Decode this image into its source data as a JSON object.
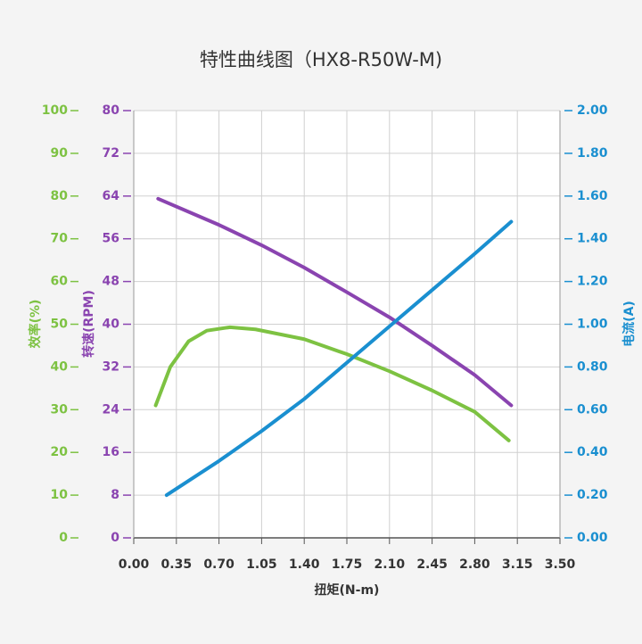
{
  "chart_data": {
    "type": "line",
    "title": "特性曲线图（HX8-R50W-M)",
    "xlabel": "扭矩(N-m)",
    "ylabel": "效率(%)",
    "y2label": "转速(RPM)",
    "y3label": "电流(A)",
    "xlim": [
      0,
      3.5
    ],
    "xticks": [
      {
        "value": 0,
        "label": "0.00"
      },
      0.35,
      {
        "value": 0.7,
        "label": "0.70"
      },
      1.05,
      {
        "value": 1.4,
        "label": "1.40"
      },
      1.75,
      {
        "value": 2.1,
        "label": "2.10"
      },
      2.45,
      {
        "value": 2.8,
        "label": "2.80"
      },
      3.15,
      {
        "value": 3.5,
        "label": "3.50"
      }
    ],
    "ylim": [
      0,
      100
    ],
    "yticks": [
      0,
      10,
      20,
      30,
      40,
      50,
      60,
      70,
      80,
      90,
      100
    ],
    "y2lim": [
      0,
      80
    ],
    "y2ticks": [
      0,
      8,
      16,
      24,
      32,
      40,
      48,
      56,
      64,
      72,
      80
    ],
    "y3lim": [
      0,
      2
    ],
    "y3ticks": [
      {
        "value": 0,
        "label": "0.00"
      },
      {
        "value": 0.2,
        "label": "0.20"
      },
      {
        "value": 0.4,
        "label": "0.40"
      },
      {
        "value": 0.6,
        "label": "0.60"
      },
      {
        "value": 0.8,
        "label": "0.80"
      },
      {
        "value": 1,
        "label": "1.00"
      },
      {
        "value": 1.2,
        "label": "1.20"
      },
      {
        "value": 1.4,
        "label": "1.40"
      },
      {
        "value": 1.6,
        "label": "1.60"
      },
      {
        "value": 1.8,
        "label": "1.80"
      },
      {
        "value": 2,
        "label": "2.00"
      }
    ],
    "ycolor": "#7dc242",
    "y2color": "#8a44b0",
    "y3color": "#1a8fd0",
    "grid": true,
    "series": [
      {
        "axis": "y",
        "color": "#7dc242",
        "x": [
          0.18,
          0.3,
          0.45,
          0.6,
          0.79,
          1.0,
          1.4,
          1.75,
          2.1,
          2.45,
          2.8,
          3.08
        ],
        "values": [
          31,
          40,
          46,
          48.5,
          49.3,
          48.8,
          46.5,
          43,
          39,
          34.5,
          29.5,
          22.8
        ]
      },
      {
        "axis": "y2",
        "color": "#8a44b0",
        "x": [
          0.2,
          0.7,
          1.05,
          1.4,
          1.75,
          2.1,
          2.45,
          2.8,
          3.1
        ],
        "values": [
          63.5,
          58.6,
          54.8,
          50.6,
          46,
          41.3,
          36,
          30.5,
          24.8
        ]
      },
      {
        "axis": "y3",
        "color": "#1a8fd0",
        "x": [
          0.27,
          0.7,
          1.05,
          1.4,
          1.75,
          2.1,
          2.45,
          2.8,
          3.1
        ],
        "values": [
          0.2,
          0.36,
          0.5,
          0.65,
          0.82,
          0.99,
          1.16,
          1.33,
          1.48
        ]
      }
    ]
  }
}
